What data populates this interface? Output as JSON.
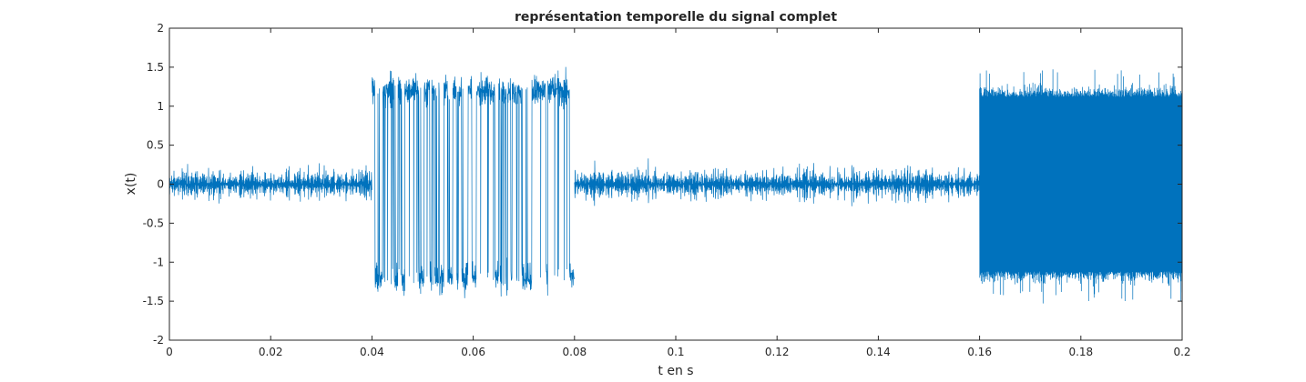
{
  "chart_data": {
    "type": "line",
    "title": "représentation temporelle du signal complet",
    "xlabel": "t en s",
    "ylabel": "x(t)",
    "xlim": [
      0,
      0.2
    ],
    "ylim": [
      -2,
      2
    ],
    "xticks": [
      0,
      0.02,
      0.04,
      0.06,
      0.08,
      0.1,
      0.12,
      0.14,
      0.16,
      0.18,
      0.2
    ],
    "xtick_labels": [
      "0",
      "0.02",
      "0.04",
      "0.06",
      "0.08",
      "0.1",
      "0.12",
      "0.14",
      "0.16",
      "0.18",
      "0.2"
    ],
    "yticks": [
      -2,
      -1.5,
      -1,
      -0.5,
      0,
      0.5,
      1,
      1.5,
      2
    ],
    "ytick_labels": [
      "-2",
      "-1.5",
      "-1",
      "-0.5",
      "0",
      "0.5",
      "1",
      "1.5",
      "2"
    ],
    "grid": false,
    "line_color": "#0072BD",
    "segments": [
      {
        "t_start": 0.0,
        "t_end": 0.04,
        "kind": "noise",
        "envelope": [
          -0.5,
          0.5
        ],
        "peak": 0.6
      },
      {
        "t_start": 0.04,
        "t_end": 0.08,
        "kind": "binary",
        "levels": [
          -1.2,
          1.2
        ],
        "envelope": [
          -1.6,
          1.6
        ]
      },
      {
        "t_start": 0.08,
        "t_end": 0.16,
        "kind": "noise",
        "envelope": [
          -0.5,
          0.5
        ],
        "peak": 0.7
      },
      {
        "t_start": 0.16,
        "t_end": 0.2,
        "kind": "dense",
        "envelope": [
          -1.3,
          1.3
        ],
        "peak": 1.55
      }
    ]
  }
}
